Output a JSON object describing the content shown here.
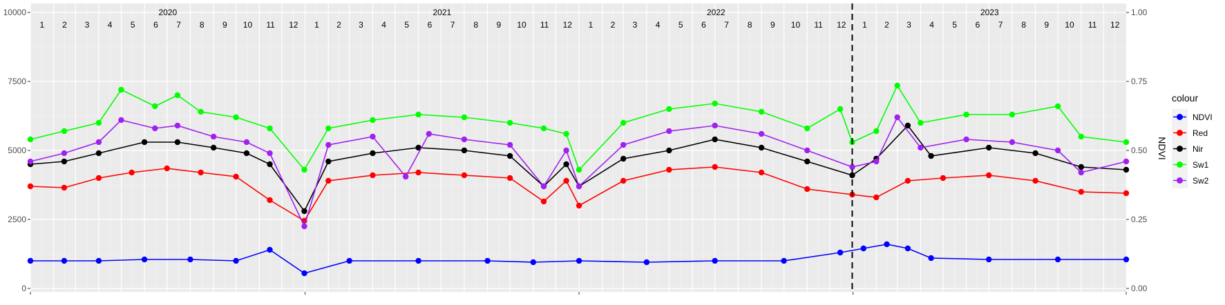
{
  "chart_data": {
    "type": "line",
    "x_axis": {
      "type": "date",
      "range": [
        "2020-01-01",
        "2023-12-31"
      ],
      "years": [
        "2020",
        "2021",
        "2022",
        "2023"
      ],
      "months": [
        "1",
        "2",
        "3",
        "4",
        "5",
        "6",
        "7",
        "8",
        "9",
        "10",
        "11",
        "12"
      ]
    },
    "y_left": {
      "ticks": [
        "0",
        "2500",
        "5000",
        "7500",
        "10000"
      ],
      "ylim": [
        0,
        10000
      ]
    },
    "y_right": {
      "label": "NDVI",
      "ticks": [
        "0.00",
        "0.25",
        "0.50",
        "0.75",
        "1.00"
      ],
      "ylim": [
        0,
        1
      ]
    },
    "vline": {
      "date": "2022-12-31",
      "style": "dashed"
    },
    "grid": true,
    "legend": {
      "title": "colour",
      "position": "right"
    },
    "series": [
      {
        "name": "NDVI",
        "color": "#0000FF",
        "points": [
          [
            "2020-01-01",
            1000
          ],
          [
            "2020-02-15",
            1000
          ],
          [
            "2020-04-01",
            1000
          ],
          [
            "2020-06-01",
            1050
          ],
          [
            "2020-08-01",
            1050
          ],
          [
            "2020-10-01",
            1000
          ],
          [
            "2020-11-15",
            1400
          ],
          [
            "2020-12-31",
            550
          ],
          [
            "2021-03-01",
            1000
          ],
          [
            "2021-06-01",
            1000
          ],
          [
            "2021-09-01",
            1000
          ],
          [
            "2021-11-01",
            950
          ],
          [
            "2022-01-01",
            1000
          ],
          [
            "2022-04-01",
            950
          ],
          [
            "2022-07-01",
            1000
          ],
          [
            "2022-10-01",
            1000
          ],
          [
            "2022-12-15",
            1300
          ],
          [
            "2023-01-15",
            1450
          ],
          [
            "2023-02-15",
            1600
          ],
          [
            "2023-03-15",
            1450
          ],
          [
            "2023-04-15",
            1100
          ],
          [
            "2023-07-01",
            1050
          ],
          [
            "2023-10-01",
            1050
          ],
          [
            "2023-12-31",
            1050
          ]
        ]
      },
      {
        "name": "Red",
        "color": "#FF0000",
        "points": [
          [
            "2020-01-01",
            3700
          ],
          [
            "2020-02-15",
            3650
          ],
          [
            "2020-04-01",
            4000
          ],
          [
            "2020-05-15",
            4200
          ],
          [
            "2020-07-01",
            4350
          ],
          [
            "2020-08-15",
            4200
          ],
          [
            "2020-10-01",
            4050
          ],
          [
            "2020-11-15",
            3200
          ],
          [
            "2020-12-31",
            2450
          ],
          [
            "2021-02-01",
            3900
          ],
          [
            "2021-04-01",
            4100
          ],
          [
            "2021-06-01",
            4200
          ],
          [
            "2021-08-01",
            4100
          ],
          [
            "2021-10-01",
            4000
          ],
          [
            "2021-11-15",
            3150
          ],
          [
            "2021-12-15",
            3900
          ],
          [
            "2022-01-01",
            3000
          ],
          [
            "2022-03-01",
            3900
          ],
          [
            "2022-05-01",
            4300
          ],
          [
            "2022-07-01",
            4400
          ],
          [
            "2022-09-01",
            4200
          ],
          [
            "2022-11-01",
            3600
          ],
          [
            "2022-12-31",
            3400
          ],
          [
            "2023-02-01",
            3300
          ],
          [
            "2023-03-15",
            3900
          ],
          [
            "2023-05-01",
            4000
          ],
          [
            "2023-07-01",
            4100
          ],
          [
            "2023-09-01",
            3900
          ],
          [
            "2023-11-01",
            3500
          ],
          [
            "2023-12-31",
            3450
          ]
        ]
      },
      {
        "name": "Nir",
        "color": "#000000",
        "points": [
          [
            "2020-01-01",
            4500
          ],
          [
            "2020-02-15",
            4600
          ],
          [
            "2020-04-01",
            4900
          ],
          [
            "2020-06-01",
            5300
          ],
          [
            "2020-07-15",
            5300
          ],
          [
            "2020-09-01",
            5100
          ],
          [
            "2020-10-15",
            4900
          ],
          [
            "2020-11-15",
            4500
          ],
          [
            "2020-12-31",
            2800
          ],
          [
            "2021-02-01",
            4600
          ],
          [
            "2021-04-01",
            4900
          ],
          [
            "2021-06-01",
            5100
          ],
          [
            "2021-08-01",
            5000
          ],
          [
            "2021-10-01",
            4800
          ],
          [
            "2021-11-15",
            3700
          ],
          [
            "2021-12-15",
            4500
          ],
          [
            "2022-01-01",
            3700
          ],
          [
            "2022-03-01",
            4700
          ],
          [
            "2022-05-01",
            5000
          ],
          [
            "2022-07-01",
            5400
          ],
          [
            "2022-09-01",
            5100
          ],
          [
            "2022-11-01",
            4600
          ],
          [
            "2022-12-31",
            4100
          ],
          [
            "2023-02-01",
            4700
          ],
          [
            "2023-03-15",
            5900
          ],
          [
            "2023-04-15",
            4800
          ],
          [
            "2023-07-01",
            5100
          ],
          [
            "2023-09-01",
            4900
          ],
          [
            "2023-11-01",
            4400
          ],
          [
            "2023-12-31",
            4300
          ]
        ]
      },
      {
        "name": "Sw1",
        "color": "#00FF00",
        "points": [
          [
            "2020-01-01",
            5400
          ],
          [
            "2020-02-15",
            5700
          ],
          [
            "2020-04-01",
            6000
          ],
          [
            "2020-05-01",
            7200
          ],
          [
            "2020-06-15",
            6600
          ],
          [
            "2020-07-15",
            7000
          ],
          [
            "2020-08-15",
            6400
          ],
          [
            "2020-10-01",
            6200
          ],
          [
            "2020-11-15",
            5800
          ],
          [
            "2020-12-31",
            4300
          ],
          [
            "2021-02-01",
            5800
          ],
          [
            "2021-04-01",
            6100
          ],
          [
            "2021-06-01",
            6300
          ],
          [
            "2021-08-01",
            6200
          ],
          [
            "2021-10-01",
            6000
          ],
          [
            "2021-11-15",
            5800
          ],
          [
            "2021-12-15",
            5600
          ],
          [
            "2022-01-01",
            4300
          ],
          [
            "2022-03-01",
            6000
          ],
          [
            "2022-05-01",
            6500
          ],
          [
            "2022-07-01",
            6700
          ],
          [
            "2022-09-01",
            6400
          ],
          [
            "2022-11-01",
            5800
          ],
          [
            "2022-12-15",
            6500
          ],
          [
            "2022-12-31",
            5300
          ],
          [
            "2023-02-01",
            5700
          ],
          [
            "2023-03-01",
            7350
          ],
          [
            "2023-04-01",
            6000
          ],
          [
            "2023-06-01",
            6300
          ],
          [
            "2023-08-01",
            6300
          ],
          [
            "2023-10-01",
            6600
          ],
          [
            "2023-11-01",
            5500
          ],
          [
            "2023-12-31",
            5300
          ]
        ]
      },
      {
        "name": "Sw2",
        "color": "#A020F0",
        "points": [
          [
            "2020-01-01",
            4600
          ],
          [
            "2020-02-15",
            4900
          ],
          [
            "2020-04-01",
            5300
          ],
          [
            "2020-05-01",
            6100
          ],
          [
            "2020-06-15",
            5800
          ],
          [
            "2020-07-15",
            5900
          ],
          [
            "2020-09-01",
            5500
          ],
          [
            "2020-10-15",
            5300
          ],
          [
            "2020-11-15",
            4900
          ],
          [
            "2020-12-31",
            2250
          ],
          [
            "2021-02-01",
            5200
          ],
          [
            "2021-04-01",
            5500
          ],
          [
            "2021-05-15",
            4050
          ],
          [
            "2021-06-15",
            5600
          ],
          [
            "2021-08-01",
            5400
          ],
          [
            "2021-10-01",
            5200
          ],
          [
            "2021-11-15",
            3700
          ],
          [
            "2021-12-15",
            5000
          ],
          [
            "2022-01-01",
            3700
          ],
          [
            "2022-03-01",
            5200
          ],
          [
            "2022-05-01",
            5700
          ],
          [
            "2022-07-01",
            5900
          ],
          [
            "2022-09-01",
            5600
          ],
          [
            "2022-11-01",
            5000
          ],
          [
            "2022-12-31",
            4400
          ],
          [
            "2023-02-01",
            4600
          ],
          [
            "2023-03-01",
            6200
          ],
          [
            "2023-04-01",
            5100
          ],
          [
            "2023-06-01",
            5400
          ],
          [
            "2023-08-01",
            5300
          ],
          [
            "2023-10-01",
            5000
          ],
          [
            "2023-11-01",
            4200
          ],
          [
            "2023-12-31",
            4600
          ]
        ]
      }
    ]
  }
}
